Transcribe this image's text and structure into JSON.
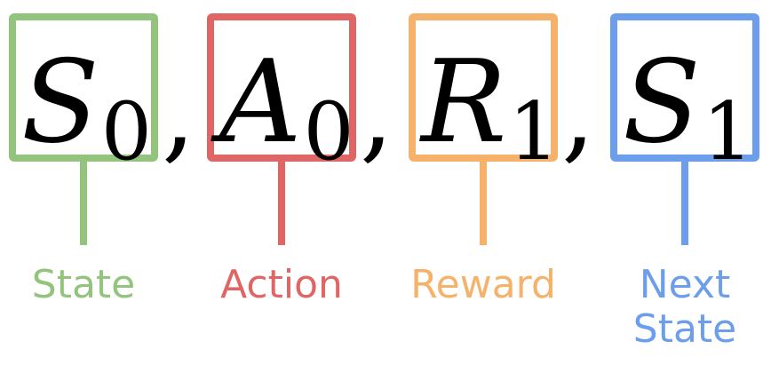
{
  "items": [
    {
      "symbol": "S",
      "subscript": "0",
      "label": "State",
      "color": "#93c47d"
    },
    {
      "symbol": "A",
      "subscript": "0",
      "label": "Action",
      "color": "#e06666"
    },
    {
      "symbol": "R",
      "subscript": "1",
      "label": "Reward",
      "color": "#f6b26b"
    },
    {
      "symbol": "S",
      "subscript": "1",
      "label": "Next\nState",
      "color": "#6d9eeb"
    }
  ],
  "separator": ","
}
